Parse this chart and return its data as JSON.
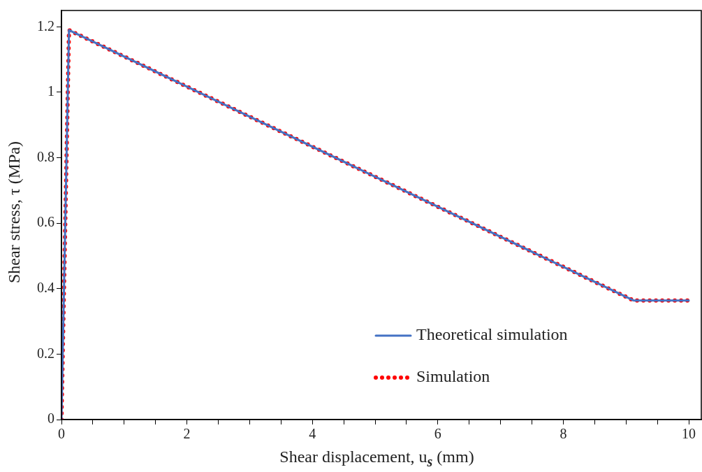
{
  "chart_data": {
    "type": "line",
    "xlabel": "Shear displacement, u$_{s}$ (mm)",
    "ylabel": "Shear stress, τ (MPa)",
    "xlim": [
      0,
      10.2
    ],
    "ylim": [
      0,
      1.25
    ],
    "xticks": [
      0,
      {
        "value": 0.5,
        "label": null
      },
      {
        "value": 1,
        "label": null
      },
      {
        "value": 1.5,
        "label": null
      },
      2,
      {
        "value": 2.5,
        "label": null
      },
      {
        "value": 3,
        "label": null
      },
      {
        "value": 3.5,
        "label": null
      },
      4,
      {
        "value": 4.5,
        "label": null
      },
      {
        "value": 5,
        "label": null
      },
      {
        "value": 5.5,
        "label": null
      },
      6,
      {
        "value": 6.5,
        "label": null
      },
      {
        "value": 7,
        "label": null
      },
      {
        "value": 7.5,
        "label": null
      },
      8,
      {
        "value": 8.5,
        "label": null
      },
      {
        "value": 9,
        "label": null
      },
      {
        "value": 9.5,
        "label": null
      },
      10
    ],
    "yticks": [
      0,
      0.2,
      0.4,
      0.6,
      0.8,
      1,
      1.2
    ],
    "grid": false,
    "legend": "bottom right",
    "marker": "none",
    "series": [
      {
        "name": "Theoretical simulation",
        "color": "#4472c4",
        "line_style": "solid",
        "x": [
          0,
          0.12,
          9.12,
          10
        ],
        "values": [
          0,
          1.19,
          0.364,
          0.364
        ]
      },
      {
        "name": "Simulation",
        "color": "#ff0000",
        "line_style": "dotted",
        "x": [
          0,
          0.12,
          9.12,
          10
        ],
        "values": [
          0,
          1.19,
          0.364,
          0.364
        ]
      }
    ]
  }
}
